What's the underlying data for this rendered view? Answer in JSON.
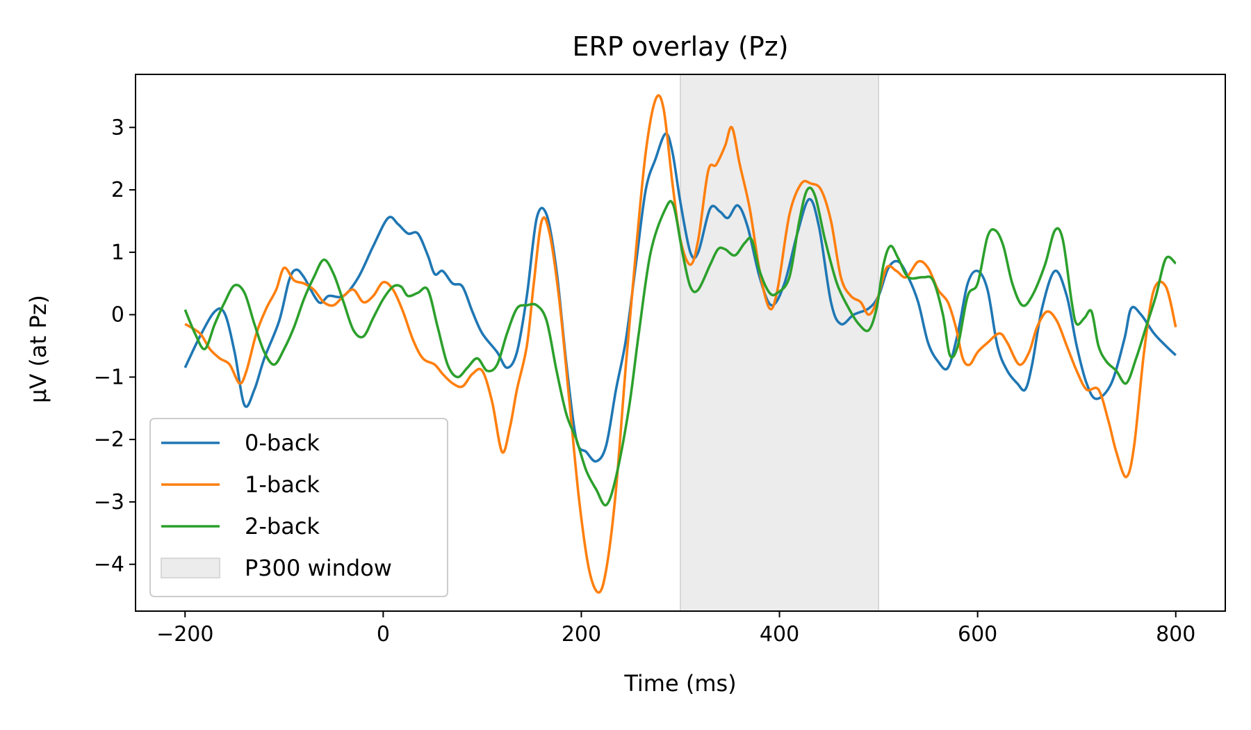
{
  "chart_data": {
    "type": "line",
    "title": "ERP overlay (Pz)",
    "xlabel": "Time (ms)",
    "ylabel": "µV (at Pz)",
    "xlim": [
      -250,
      850
    ],
    "ylim": [
      -4.75,
      3.85
    ],
    "xticks": [
      -200,
      0,
      200,
      400,
      600,
      800
    ],
    "yticks": [
      -4,
      -3,
      -2,
      -1,
      0,
      1,
      2,
      3
    ],
    "grid": false,
    "legend_position": "lower-left",
    "shaded_region": {
      "name": "P300 window",
      "x_start": 300,
      "x_end": 500,
      "color": "#ececec"
    },
    "series": [
      {
        "name": "0-back",
        "color": "#1f77b4",
        "points": [
          [
            -200,
            -0.85
          ],
          [
            -185,
            -0.35
          ],
          [
            -170,
            0.05
          ],
          [
            -160,
            0.02
          ],
          [
            -150,
            -0.6
          ],
          [
            -140,
            -1.45
          ],
          [
            -130,
            -1.2
          ],
          [
            -120,
            -0.7
          ],
          [
            -105,
            -0.1
          ],
          [
            -95,
            0.55
          ],
          [
            -88,
            0.72
          ],
          [
            -80,
            0.6
          ],
          [
            -65,
            0.2
          ],
          [
            -55,
            0.3
          ],
          [
            -40,
            0.3
          ],
          [
            -25,
            0.6
          ],
          [
            -10,
            1.1
          ],
          [
            5,
            1.55
          ],
          [
            15,
            1.45
          ],
          [
            25,
            1.3
          ],
          [
            35,
            1.3
          ],
          [
            45,
            0.95
          ],
          [
            52,
            0.65
          ],
          [
            60,
            0.7
          ],
          [
            70,
            0.5
          ],
          [
            80,
            0.45
          ],
          [
            90,
            0.05
          ],
          [
            100,
            -0.3
          ],
          [
            115,
            -0.6
          ],
          [
            125,
            -0.85
          ],
          [
            135,
            -0.6
          ],
          [
            145,
            0.3
          ],
          [
            155,
            1.55
          ],
          [
            165,
            1.6
          ],
          [
            175,
            0.7
          ],
          [
            185,
            -0.8
          ],
          [
            195,
            -2.0
          ],
          [
            205,
            -2.2
          ],
          [
            215,
            -2.35
          ],
          [
            225,
            -2.1
          ],
          [
            235,
            -1.2
          ],
          [
            245,
            -0.4
          ],
          [
            255,
            0.8
          ],
          [
            265,
            2.0
          ],
          [
            275,
            2.5
          ],
          [
            285,
            2.9
          ],
          [
            292,
            2.6
          ],
          [
            300,
            1.8
          ],
          [
            310,
            1.0
          ],
          [
            318,
            1.0
          ],
          [
            330,
            1.7
          ],
          [
            340,
            1.65
          ],
          [
            348,
            1.55
          ],
          [
            358,
            1.75
          ],
          [
            368,
            1.4
          ],
          [
            380,
            0.6
          ],
          [
            392,
            0.15
          ],
          [
            405,
            0.5
          ],
          [
            418,
            1.3
          ],
          [
            430,
            1.85
          ],
          [
            440,
            1.4
          ],
          [
            452,
            0.2
          ],
          [
            462,
            -0.15
          ],
          [
            475,
            0.0
          ],
          [
            490,
            0.1
          ],
          [
            500,
            0.3
          ],
          [
            510,
            0.75
          ],
          [
            520,
            0.85
          ],
          [
            530,
            0.6
          ],
          [
            540,
            0.2
          ],
          [
            550,
            -0.45
          ],
          [
            560,
            -0.75
          ],
          [
            570,
            -0.85
          ],
          [
            580,
            -0.3
          ],
          [
            590,
            0.5
          ],
          [
            600,
            0.7
          ],
          [
            610,
            0.4
          ],
          [
            620,
            -0.5
          ],
          [
            630,
            -0.9
          ],
          [
            640,
            -1.1
          ],
          [
            648,
            -1.2
          ],
          [
            655,
            -0.8
          ],
          [
            665,
            0.1
          ],
          [
            678,
            0.7
          ],
          [
            690,
            0.3
          ],
          [
            700,
            -0.5
          ],
          [
            710,
            -1.1
          ],
          [
            720,
            -1.35
          ],
          [
            735,
            -1.1
          ],
          [
            748,
            -0.4
          ],
          [
            755,
            0.1
          ],
          [
            765,
            0.0
          ],
          [
            778,
            -0.3
          ],
          [
            790,
            -0.5
          ],
          [
            800,
            -0.65
          ]
        ]
      },
      {
        "name": "1-back",
        "color": "#ff7f0e",
        "points": [
          [
            -200,
            -0.15
          ],
          [
            -185,
            -0.3
          ],
          [
            -175,
            -0.55
          ],
          [
            -165,
            -0.7
          ],
          [
            -155,
            -0.8
          ],
          [
            -145,
            -1.1
          ],
          [
            -138,
            -0.9
          ],
          [
            -128,
            -0.3
          ],
          [
            -118,
            0.1
          ],
          [
            -108,
            0.4
          ],
          [
            -100,
            0.75
          ],
          [
            -90,
            0.55
          ],
          [
            -80,
            0.5
          ],
          [
            -70,
            0.4
          ],
          [
            -60,
            0.2
          ],
          [
            -50,
            0.15
          ],
          [
            -40,
            0.3
          ],
          [
            -30,
            0.4
          ],
          [
            -20,
            0.2
          ],
          [
            -10,
            0.3
          ],
          [
            0,
            0.52
          ],
          [
            10,
            0.4
          ],
          [
            20,
            0.05
          ],
          [
            30,
            -0.4
          ],
          [
            40,
            -0.7
          ],
          [
            52,
            -0.8
          ],
          [
            60,
            -0.95
          ],
          [
            70,
            -1.1
          ],
          [
            80,
            -1.15
          ],
          [
            90,
            -0.95
          ],
          [
            100,
            -0.9
          ],
          [
            110,
            -1.4
          ],
          [
            120,
            -2.2
          ],
          [
            128,
            -1.8
          ],
          [
            135,
            -1.2
          ],
          [
            145,
            -0.5
          ],
          [
            152,
            0.5
          ],
          [
            160,
            1.5
          ],
          [
            168,
            1.3
          ],
          [
            178,
            0.2
          ],
          [
            188,
            -1.4
          ],
          [
            198,
            -3.0
          ],
          [
            208,
            -4.1
          ],
          [
            218,
            -4.45
          ],
          [
            226,
            -4.0
          ],
          [
            235,
            -2.8
          ],
          [
            245,
            -0.8
          ],
          [
            255,
            1.0
          ],
          [
            265,
            2.6
          ],
          [
            275,
            3.45
          ],
          [
            283,
            3.3
          ],
          [
            292,
            2.1
          ],
          [
            300,
            1.2
          ],
          [
            310,
            0.8
          ],
          [
            318,
            1.2
          ],
          [
            328,
            2.3
          ],
          [
            336,
            2.4
          ],
          [
            345,
            2.7
          ],
          [
            352,
            3.0
          ],
          [
            360,
            2.4
          ],
          [
            370,
            1.7
          ],
          [
            380,
            0.7
          ],
          [
            390,
            0.1
          ],
          [
            398,
            0.4
          ],
          [
            410,
            1.6
          ],
          [
            422,
            2.1
          ],
          [
            432,
            2.1
          ],
          [
            442,
            2.0
          ],
          [
            452,
            1.5
          ],
          [
            462,
            0.6
          ],
          [
            472,
            0.3
          ],
          [
            482,
            0.2
          ],
          [
            490,
            0.0
          ],
          [
            498,
            0.2
          ],
          [
            508,
            0.75
          ],
          [
            518,
            0.7
          ],
          [
            528,
            0.6
          ],
          [
            540,
            0.85
          ],
          [
            550,
            0.75
          ],
          [
            560,
            0.4
          ],
          [
            570,
            0.2
          ],
          [
            578,
            -0.2
          ],
          [
            585,
            -0.7
          ],
          [
            592,
            -0.8
          ],
          [
            600,
            -0.6
          ],
          [
            610,
            -0.45
          ],
          [
            622,
            -0.3
          ],
          [
            630,
            -0.45
          ],
          [
            642,
            -0.8
          ],
          [
            652,
            -0.6
          ],
          [
            660,
            -0.2
          ],
          [
            670,
            0.05
          ],
          [
            680,
            -0.1
          ],
          [
            690,
            -0.5
          ],
          [
            700,
            -0.9
          ],
          [
            710,
            -1.2
          ],
          [
            722,
            -1.2
          ],
          [
            732,
            -1.7
          ],
          [
            740,
            -2.2
          ],
          [
            750,
            -2.6
          ],
          [
            758,
            -2.1
          ],
          [
            768,
            -0.6
          ],
          [
            778,
            0.4
          ],
          [
            790,
            0.45
          ],
          [
            800,
            -0.2
          ]
        ]
      },
      {
        "name": "2-back",
        "color": "#2ca02c",
        "points": [
          [
            -200,
            0.08
          ],
          [
            -190,
            -0.3
          ],
          [
            -180,
            -0.55
          ],
          [
            -170,
            -0.15
          ],
          [
            -160,
            0.2
          ],
          [
            -150,
            0.47
          ],
          [
            -140,
            0.35
          ],
          [
            -130,
            -0.15
          ],
          [
            -120,
            -0.6
          ],
          [
            -110,
            -0.8
          ],
          [
            -100,
            -0.55
          ],
          [
            -90,
            -0.2
          ],
          [
            -80,
            0.25
          ],
          [
            -70,
            0.6
          ],
          [
            -60,
            0.88
          ],
          [
            -50,
            0.65
          ],
          [
            -40,
            0.2
          ],
          [
            -30,
            -0.25
          ],
          [
            -20,
            -0.35
          ],
          [
            -10,
            -0.05
          ],
          [
            0,
            0.25
          ],
          [
            10,
            0.45
          ],
          [
            18,
            0.45
          ],
          [
            25,
            0.3
          ],
          [
            35,
            0.35
          ],
          [
            45,
            0.4
          ],
          [
            55,
            -0.2
          ],
          [
            65,
            -0.8
          ],
          [
            75,
            -1.0
          ],
          [
            85,
            -0.85
          ],
          [
            95,
            -0.7
          ],
          [
            105,
            -0.9
          ],
          [
            115,
            -0.8
          ],
          [
            125,
            -0.3
          ],
          [
            135,
            0.1
          ],
          [
            145,
            0.15
          ],
          [
            155,
            0.15
          ],
          [
            165,
            -0.1
          ],
          [
            175,
            -0.9
          ],
          [
            185,
            -1.6
          ],
          [
            195,
            -2.0
          ],
          [
            205,
            -2.5
          ],
          [
            215,
            -2.8
          ],
          [
            225,
            -3.05
          ],
          [
            235,
            -2.6
          ],
          [
            248,
            -1.5
          ],
          [
            258,
            -0.3
          ],
          [
            270,
            1.0
          ],
          [
            285,
            1.7
          ],
          [
            293,
            1.75
          ],
          [
            302,
            1.0
          ],
          [
            310,
            0.45
          ],
          [
            318,
            0.4
          ],
          [
            330,
            0.8
          ],
          [
            338,
            1.05
          ],
          [
            345,
            1.05
          ],
          [
            355,
            0.95
          ],
          [
            365,
            1.15
          ],
          [
            372,
            1.2
          ],
          [
            380,
            0.7
          ],
          [
            390,
            0.35
          ],
          [
            398,
            0.35
          ],
          [
            410,
            0.6
          ],
          [
            420,
            1.5
          ],
          [
            428,
            2.0
          ],
          [
            436,
            1.9
          ],
          [
            446,
            1.2
          ],
          [
            458,
            0.5
          ],
          [
            470,
            0.1
          ],
          [
            480,
            -0.15
          ],
          [
            490,
            -0.25
          ],
          [
            498,
            0.1
          ],
          [
            505,
            0.8
          ],
          [
            512,
            1.1
          ],
          [
            520,
            0.9
          ],
          [
            530,
            0.6
          ],
          [
            545,
            0.6
          ],
          [
            555,
            0.55
          ],
          [
            565,
            0.0
          ],
          [
            572,
            -0.65
          ],
          [
            580,
            -0.5
          ],
          [
            590,
            0.3
          ],
          [
            600,
            0.5
          ],
          [
            610,
            1.25
          ],
          [
            618,
            1.35
          ],
          [
            626,
            1.1
          ],
          [
            635,
            0.5
          ],
          [
            645,
            0.15
          ],
          [
            655,
            0.3
          ],
          [
            668,
            0.8
          ],
          [
            678,
            1.35
          ],
          [
            686,
            1.2
          ],
          [
            695,
            0.2
          ],
          [
            700,
            -0.15
          ],
          [
            708,
            -0.05
          ],
          [
            715,
            0.05
          ],
          [
            722,
            -0.5
          ],
          [
            730,
            -0.75
          ],
          [
            740,
            -0.9
          ],
          [
            750,
            -1.1
          ],
          [
            760,
            -0.7
          ],
          [
            770,
            -0.2
          ],
          [
            780,
            0.3
          ],
          [
            790,
            0.9
          ],
          [
            800,
            0.82
          ]
        ]
      }
    ]
  }
}
